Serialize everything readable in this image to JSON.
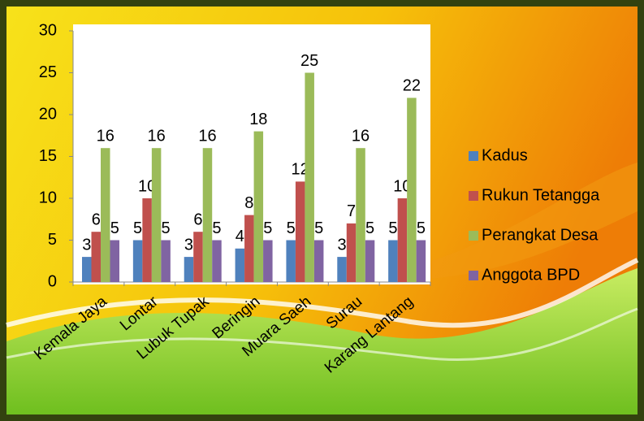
{
  "chart_data": {
    "type": "bar",
    "categories": [
      "Kemala Jaya",
      "Lontar",
      "Lubuk Tupak",
      "Beringin",
      "Muara Saeh",
      "Surau",
      "Karang Lantang"
    ],
    "series": [
      {
        "name": "Kadus",
        "color": "#4f81bd",
        "values": [
          3,
          5,
          3,
          4,
          5,
          3,
          5
        ]
      },
      {
        "name": "Rukun Tetangga",
        "color": "#c0504d",
        "values": [
          6,
          10,
          6,
          8,
          12,
          7,
          10
        ]
      },
      {
        "name": "Perangkat Desa",
        "color": "#9bbb59",
        "values": [
          16,
          16,
          16,
          18,
          25,
          16,
          22
        ]
      },
      {
        "name": "Anggota BPD",
        "color": "#8064a2",
        "values": [
          5,
          5,
          5,
          5,
          5,
          5,
          5
        ]
      }
    ],
    "ylim": [
      0,
      30
    ],
    "yticks": [
      0,
      5,
      10,
      15,
      20,
      25,
      30
    ],
    "legend": "right",
    "data_labels": true
  }
}
